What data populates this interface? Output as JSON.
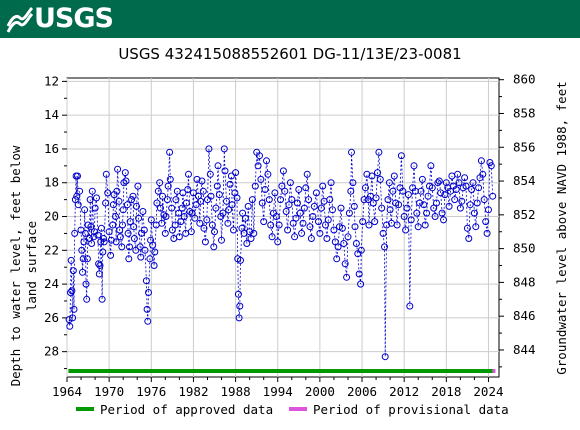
{
  "banner": {
    "logo_text": "USGS",
    "color": "#006a4d"
  },
  "chart_data": {
    "type": "scatter",
    "title": "USGS 432415088552601 DG-11/13E/23-0081",
    "ylabel_left": "Depth to water level, feet below land surface",
    "ylabel_right": "Groundwater level above NAVD 1988, feet",
    "xlim": [
      1964,
      2025.5
    ],
    "ylim_left": [
      29.5,
      11.8
    ],
    "ylim_right": [
      842.4,
      860.1
    ],
    "x_ticks": [
      "1964",
      "1970",
      "1976",
      "1982",
      "1988",
      "1994",
      "2000",
      "2006",
      "2012",
      "2018",
      "2024"
    ],
    "y_ticks_left": [
      "12",
      "14",
      "16",
      "18",
      "20",
      "22",
      "24",
      "26",
      "28"
    ],
    "y_ticks_right": [
      "844",
      "846",
      "848",
      "850",
      "852",
      "854",
      "856",
      "858",
      "860"
    ],
    "series_color": "#0000cc",
    "approved_period": [
      1964.2,
      2024.6
    ],
    "provisional_period": [
      2024.6,
      2025.0
    ],
    "legend": [
      {
        "label": "Period of approved data",
        "color": "#009900"
      },
      {
        "label": "Period of provisional data",
        "color": "#dd55dd"
      }
    ],
    "points": [
      [
        1964.3,
        26.1
      ],
      [
        1964.4,
        26.5
      ],
      [
        1964.5,
        24.5
      ],
      [
        1964.6,
        22.6
      ],
      [
        1964.7,
        24.4
      ],
      [
        1964.8,
        26.0
      ],
      [
        1964.9,
        23.2
      ],
      [
        1965.0,
        25.5
      ],
      [
        1965.1,
        21.0
      ],
      [
        1965.2,
        19.0
      ],
      [
        1965.3,
        17.6
      ],
      [
        1965.4,
        18.8
      ],
      [
        1965.5,
        17.6
      ],
      [
        1965.6,
        19.3
      ],
      [
        1965.8,
        18.5
      ],
      [
        1966.0,
        20.8
      ],
      [
        1966.1,
        22.0
      ],
      [
        1966.2,
        23.3
      ],
      [
        1966.3,
        22.5
      ],
      [
        1966.4,
        21.5
      ],
      [
        1966.5,
        19.6
      ],
      [
        1966.6,
        21.0
      ],
      [
        1966.7,
        24.0
      ],
      [
        1966.8,
        24.9
      ],
      [
        1966.9,
        22.5
      ],
      [
        1967.0,
        20.5
      ],
      [
        1967.2,
        21.3
      ],
      [
        1967.3,
        19.0
      ],
      [
        1967.4,
        20.6
      ],
      [
        1967.5,
        21.6
      ],
      [
        1967.6,
        18.5
      ],
      [
        1967.8,
        21.2
      ],
      [
        1967.9,
        20.9
      ],
      [
        1968.0,
        19.5
      ],
      [
        1968.2,
        18.9
      ],
      [
        1968.4,
        21.1
      ],
      [
        1968.5,
        22.8
      ],
      [
        1968.6,
        23.4
      ],
      [
        1968.7,
        22.9
      ],
      [
        1968.8,
        21.5
      ],
      [
        1968.9,
        20.7
      ],
      [
        1969.0,
        24.9
      ],
      [
        1969.1,
        22.1
      ],
      [
        1969.2,
        21.3
      ],
      [
        1969.3,
        21.5
      ],
      [
        1969.5,
        19.2
      ],
      [
        1969.6,
        17.5
      ],
      [
        1969.8,
        18.6
      ],
      [
        1970.0,
        20.9
      ],
      [
        1970.2,
        22.3
      ],
      [
        1970.3,
        21.4
      ],
      [
        1970.5,
        20.5
      ],
      [
        1970.6,
        19.3
      ],
      [
        1970.7,
        18.7
      ],
      [
        1970.9,
        20.0
      ],
      [
        1971.0,
        21.5
      ],
      [
        1971.1,
        18.5
      ],
      [
        1971.2,
        17.2
      ],
      [
        1971.4,
        19.1
      ],
      [
        1971.5,
        20.8
      ],
      [
        1971.6,
        21.2
      ],
      [
        1971.8,
        21.8
      ],
      [
        1971.9,
        20.5
      ],
      [
        1972.0,
        19.6
      ],
      [
        1972.1,
        18.0
      ],
      [
        1972.3,
        17.4
      ],
      [
        1972.4,
        17.9
      ],
      [
        1972.6,
        19.3
      ],
      [
        1972.7,
        21.0
      ],
      [
        1972.8,
        22.5
      ],
      [
        1972.9,
        21.8
      ],
      [
        1973.0,
        20.3
      ],
      [
        1973.2,
        19.0
      ],
      [
        1973.4,
        18.8
      ],
      [
        1973.5,
        20.6
      ],
      [
        1973.6,
        21.3
      ],
      [
        1973.8,
        22.0
      ],
      [
        1973.9,
        19.4
      ],
      [
        1974.1,
        18.2
      ],
      [
        1974.2,
        20.1
      ],
      [
        1974.4,
        21.8
      ],
      [
        1974.5,
        22.4
      ],
      [
        1974.6,
        21.0
      ],
      [
        1974.8,
        19.7
      ],
      [
        1975.0,
        20.8
      ],
      [
        1975.1,
        22.0
      ],
      [
        1975.3,
        23.8
      ],
      [
        1975.4,
        25.5
      ],
      [
        1975.5,
        26.2
      ],
      [
        1975.6,
        24.5
      ],
      [
        1975.8,
        22.5
      ],
      [
        1975.9,
        21.4
      ],
      [
        1976.0,
        20.2
      ],
      [
        1976.2,
        21.7
      ],
      [
        1976.4,
        22.9
      ],
      [
        1976.5,
        22.1
      ],
      [
        1976.7,
        20.5
      ],
      [
        1976.8,
        19.2
      ],
      [
        1977.0,
        18.5
      ],
      [
        1977.2,
        18.0
      ],
      [
        1977.3,
        19.5
      ],
      [
        1977.5,
        20.4
      ],
      [
        1977.6,
        18.8
      ],
      [
        1977.8,
        19.9
      ],
      [
        1978.0,
        21.0
      ],
      [
        1978.1,
        20.0
      ],
      [
        1978.3,
        19.0
      ],
      [
        1978.4,
        18.2
      ],
      [
        1978.6,
        16.2
      ],
      [
        1978.7,
        17.8
      ],
      [
        1978.9,
        19.5
      ],
      [
        1979.0,
        20.8
      ],
      [
        1979.2,
        21.3
      ],
      [
        1979.4,
        20.5
      ],
      [
        1979.5,
        19.0
      ],
      [
        1979.7,
        18.5
      ],
      [
        1979.9,
        19.8
      ],
      [
        1980.0,
        21.2
      ],
      [
        1980.2,
        20.3
      ],
      [
        1980.4,
        19.5
      ],
      [
        1980.5,
        18.6
      ],
      [
        1980.7,
        20.0
      ],
      [
        1980.9,
        21.0
      ],
      [
        1981.0,
        19.2
      ],
      [
        1981.2,
        18.4
      ],
      [
        1981.3,
        17.5
      ],
      [
        1981.5,
        19.7
      ],
      [
        1981.7,
        20.9
      ],
      [
        1981.8,
        19.8
      ],
      [
        1982.0,
        18.6
      ],
      [
        1982.2,
        20.1
      ],
      [
        1982.4,
        19.3
      ],
      [
        1982.5,
        17.8
      ],
      [
        1982.7,
        18.8
      ],
      [
        1982.9,
        20.4
      ],
      [
        1983.0,
        19.1
      ],
      [
        1983.2,
        17.9
      ],
      [
        1983.4,
        18.5
      ],
      [
        1983.5,
        20.7
      ],
      [
        1983.7,
        21.5
      ],
      [
        1983.9,
        20.2
      ],
      [
        1984.0,
        19.0
      ],
      [
        1984.2,
        16.0
      ],
      [
        1984.4,
        17.5
      ],
      [
        1984.5,
        18.8
      ],
      [
        1984.7,
        20.5
      ],
      [
        1984.9,
        21.8
      ],
      [
        1985.0,
        20.9
      ],
      [
        1985.2,
        19.5
      ],
      [
        1985.4,
        18.2
      ],
      [
        1985.5,
        17.0
      ],
      [
        1985.7,
        18.7
      ],
      [
        1985.9,
        20.0
      ],
      [
        1986.0,
        21.4
      ],
      [
        1986.2,
        19.8
      ],
      [
        1986.4,
        16.0
      ],
      [
        1986.5,
        17.3
      ],
      [
        1986.7,
        19.1
      ],
      [
        1986.9,
        20.4
      ],
      [
        1987.0,
        19.6
      ],
      [
        1987.2,
        18.1
      ],
      [
        1987.4,
        17.6
      ],
      [
        1987.5,
        19.3
      ],
      [
        1987.7,
        20.8
      ],
      [
        1987.9,
        18.6
      ],
      [
        1988.0,
        17.4
      ],
      [
        1988.2,
        18.9
      ],
      [
        1988.3,
        22.5
      ],
      [
        1988.4,
        24.6
      ],
      [
        1988.5,
        26.0
      ],
      [
        1988.6,
        25.3
      ],
      [
        1988.7,
        22.6
      ],
      [
        1988.9,
        20.7
      ],
      [
        1989.0,
        19.8
      ],
      [
        1989.2,
        21.0
      ],
      [
        1989.4,
        20.1
      ],
      [
        1989.6,
        21.6
      ],
      [
        1989.8,
        19.4
      ],
      [
        1990.0,
        20.9
      ],
      [
        1990.2,
        21.3
      ],
      [
        1990.4,
        19.0
      ],
      [
        1990.6,
        21.0
      ],
      [
        1990.8,
        18.2
      ],
      [
        1991.0,
        16.2
      ],
      [
        1991.2,
        17.0
      ],
      [
        1991.4,
        16.4
      ],
      [
        1991.6,
        17.8
      ],
      [
        1991.8,
        19.2
      ],
      [
        1992.0,
        20.3
      ],
      [
        1992.2,
        18.4
      ],
      [
        1992.4,
        16.7
      ],
      [
        1992.6,
        17.5
      ],
      [
        1992.8,
        19.0
      ],
      [
        1993.0,
        20.5
      ],
      [
        1993.2,
        21.2
      ],
      [
        1993.4,
        19.8
      ],
      [
        1993.6,
        18.6
      ],
      [
        1993.8,
        20.0
      ],
      [
        1994.0,
        21.5
      ],
      [
        1994.2,
        20.5
      ],
      [
        1994.4,
        19.0
      ],
      [
        1994.6,
        18.2
      ],
      [
        1994.8,
        17.3
      ],
      [
        1995.0,
        18.5
      ],
      [
        1995.2,
        19.7
      ],
      [
        1995.4,
        20.8
      ],
      [
        1995.6,
        19.3
      ],
      [
        1995.8,
        18.0
      ],
      [
        1996.0,
        19.0
      ],
      [
        1996.2,
        20.4
      ],
      [
        1996.4,
        21.2
      ],
      [
        1996.6,
        20.1
      ],
      [
        1996.8,
        19.2
      ],
      [
        1997.0,
        18.4
      ],
      [
        1997.2,
        19.8
      ],
      [
        1997.4,
        21.0
      ],
      [
        1997.6,
        20.4
      ],
      [
        1997.8,
        19.5
      ],
      [
        1998.0,
        18.3
      ],
      [
        1998.2,
        17.5
      ],
      [
        1998.4,
        19.0
      ],
      [
        1998.6,
        20.6
      ],
      [
        1998.8,
        21.3
      ],
      [
        1999.0,
        20.0
      ],
      [
        1999.2,
        19.4
      ],
      [
        1999.5,
        18.6
      ],
      [
        1999.8,
        20.3
      ],
      [
        2000.0,
        21.0
      ],
      [
        2000.2,
        19.5
      ],
      [
        2000.4,
        18.2
      ],
      [
        2000.6,
        19.1
      ],
      [
        2000.8,
        20.5
      ],
      [
        2001.0,
        21.3
      ],
      [
        2001.2,
        20.2
      ],
      [
        2001.4,
        19.0
      ],
      [
        2001.6,
        18.0
      ],
      [
        2001.8,
        19.6
      ],
      [
        2002.0,
        20.8
      ],
      [
        2002.2,
        21.5
      ],
      [
        2002.4,
        22.5
      ],
      [
        2002.6,
        21.8
      ],
      [
        2002.8,
        20.6
      ],
      [
        2003.0,
        19.5
      ],
      [
        2003.2,
        20.7
      ],
      [
        2003.4,
        21.6
      ],
      [
        2003.6,
        22.8
      ],
      [
        2003.8,
        23.6
      ],
      [
        2004.0,
        21.2
      ],
      [
        2004.2,
        19.8
      ],
      [
        2004.4,
        18.5
      ],
      [
        2004.5,
        16.2
      ],
      [
        2004.7,
        18.0
      ],
      [
        2004.9,
        19.4
      ],
      [
        2005.0,
        20.6
      ],
      [
        2005.2,
        21.6
      ],
      [
        2005.4,
        22.2
      ],
      [
        2005.6,
        23.4
      ],
      [
        2005.8,
        24.0
      ],
      [
        2005.9,
        22.0
      ],
      [
        2006.1,
        20.3
      ],
      [
        2006.3,
        19.0
      ],
      [
        2006.5,
        18.3
      ],
      [
        2006.7,
        17.5
      ],
      [
        2006.9,
        19.0
      ],
      [
        2007.0,
        20.5
      ],
      [
        2007.2,
        18.8
      ],
      [
        2007.4,
        17.6
      ],
      [
        2007.6,
        19.2
      ],
      [
        2007.8,
        20.3
      ],
      [
        2008.0,
        18.9
      ],
      [
        2008.2,
        17.4
      ],
      [
        2008.4,
        16.2
      ],
      [
        2008.6,
        17.8
      ],
      [
        2008.8,
        19.5
      ],
      [
        2009.0,
        21.0
      ],
      [
        2009.2,
        21.8
      ],
      [
        2009.3,
        28.3
      ],
      [
        2009.5,
        20.5
      ],
      [
        2009.7,
        19.0
      ],
      [
        2009.9,
        18.0
      ],
      [
        2010.0,
        19.6
      ],
      [
        2010.2,
        20.4
      ],
      [
        2010.4,
        18.5
      ],
      [
        2010.6,
        17.6
      ],
      [
        2010.8,
        19.2
      ],
      [
        2011.0,
        20.5
      ],
      [
        2011.2,
        19.3
      ],
      [
        2011.4,
        18.3
      ],
      [
        2011.6,
        16.4
      ],
      [
        2011.8,
        18.5
      ],
      [
        2012.0,
        20.0
      ],
      [
        2012.2,
        20.8
      ],
      [
        2012.4,
        19.5
      ],
      [
        2012.6,
        18.7
      ],
      [
        2012.8,
        25.3
      ],
      [
        2013.0,
        20.2
      ],
      [
        2013.2,
        18.3
      ],
      [
        2013.4,
        17.0
      ],
      [
        2013.6,
        18.5
      ],
      [
        2013.8,
        19.8
      ],
      [
        2014.0,
        20.6
      ],
      [
        2014.2,
        19.2
      ],
      [
        2014.4,
        18.5
      ],
      [
        2014.6,
        17.8
      ],
      [
        2014.8,
        19.3
      ],
      [
        2015.0,
        20.5
      ],
      [
        2015.2,
        19.8
      ],
      [
        2015.4,
        18.8
      ],
      [
        2015.6,
        18.2
      ],
      [
        2015.8,
        17.0
      ],
      [
        2016.0,
        18.3
      ],
      [
        2016.2,
        19.5
      ],
      [
        2016.4,
        20.0
      ],
      [
        2016.6,
        19.2
      ],
      [
        2016.8,
        18.0
      ],
      [
        2017.0,
        17.9
      ],
      [
        2017.2,
        18.6
      ],
      [
        2017.4,
        19.8
      ],
      [
        2017.6,
        20.2
      ],
      [
        2017.8,
        18.7
      ],
      [
        2018.0,
        18.0
      ],
      [
        2018.2,
        18.3
      ],
      [
        2018.4,
        19.4
      ],
      [
        2018.6,
        18.5
      ],
      [
        2018.8,
        17.6
      ],
      [
        2019.0,
        18.2
      ],
      [
        2019.2,
        19.0
      ],
      [
        2019.4,
        18.4
      ],
      [
        2019.6,
        17.5
      ],
      [
        2019.8,
        18.0
      ],
      [
        2020.0,
        19.5
      ],
      [
        2020.2,
        19.1
      ],
      [
        2020.4,
        18.3
      ],
      [
        2020.6,
        17.7
      ],
      [
        2020.8,
        18.2
      ],
      [
        2021.0,
        20.7
      ],
      [
        2021.2,
        21.3
      ],
      [
        2021.4,
        19.3
      ],
      [
        2021.6,
        18.4
      ],
      [
        2021.8,
        18.0
      ],
      [
        2022.0,
        19.8
      ],
      [
        2022.2,
        20.6
      ],
      [
        2022.4,
        19.2
      ],
      [
        2022.6,
        18.3
      ],
      [
        2022.8,
        17.7
      ],
      [
        2023.0,
        16.7
      ],
      [
        2023.2,
        17.5
      ],
      [
        2023.4,
        19.0
      ],
      [
        2023.6,
        20.3
      ],
      [
        2023.8,
        21.0
      ],
      [
        2024.0,
        19.6
      ],
      [
        2024.2,
        16.8
      ],
      [
        2024.4,
        17.0
      ],
      [
        2024.6,
        18.8
      ]
    ]
  }
}
